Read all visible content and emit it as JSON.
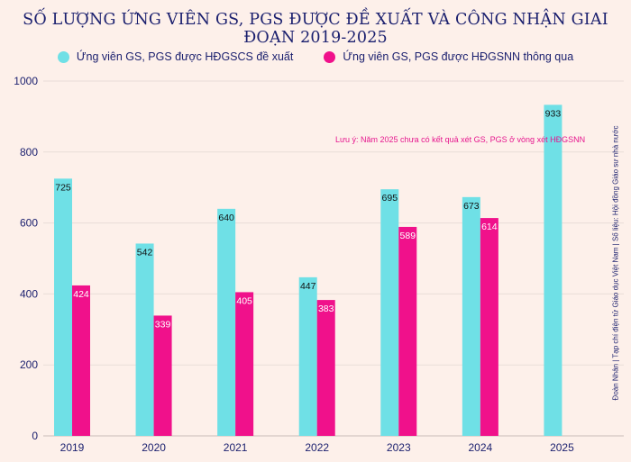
{
  "title": "SỐ LƯỢNG ỨNG VIÊN GS, PGS ĐƯỢC ĐỀ XUẤT VÀ CÔNG NHẬN GIAI ĐOẠN 2019-2025",
  "note": "Lưu ý: Năm 2025 chưa có kết quả xét GS, PGS ở vòng xét HĐGSNN",
  "source": "Đoàn Nhân | Tạp chí điện tử Giáo dục Việt Nam | Số liệu: Hội đồng Giáo sư nhà nước",
  "colors": {
    "proposed": "#6fe0e6",
    "approved": "#f0118b",
    "text": "#1a1f6e",
    "grid": "#e9ddd8"
  },
  "chart_data": {
    "type": "bar",
    "title": "SỐ LƯỢNG ỨNG VIÊN GS, PGS ĐƯỢC ĐỀ XUẤT VÀ CÔNG NHẬN GIAI ĐOẠN 2019-2025",
    "categories": [
      "2019",
      "2020",
      "2021",
      "2022",
      "2023",
      "2024",
      "2025"
    ],
    "series": [
      {
        "name": "Ứng viên GS, PGS được HĐGSCS đề xuất",
        "values": [
          725,
          542,
          640,
          447,
          695,
          673,
          933
        ]
      },
      {
        "name": "Ứng viên GS, PGS được HĐGSNN thông qua",
        "values": [
          424,
          339,
          405,
          383,
          589,
          614,
          null
        ]
      }
    ],
    "ylim": [
      0,
      1000
    ],
    "yticks": [
      0,
      200,
      400,
      600,
      800,
      1000
    ],
    "xlabel": "",
    "ylabel": "",
    "legend": "top-center",
    "grid": true
  }
}
